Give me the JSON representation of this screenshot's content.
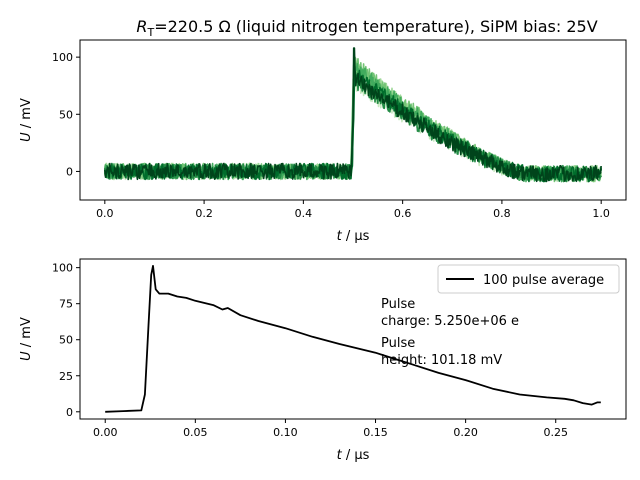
{
  "figure": {
    "title_main": "R",
    "title_sub": "T",
    "title_rest": "=220.5 Ω (liquid nitrogen temperature), SiPM bias: 25V"
  },
  "chart_data": [
    {
      "type": "line",
      "title": "R_T=220.5 Ω (liquid nitrogen temperature), SiPM bias: 25V",
      "xlabel": "t / µs",
      "ylabel": "U / mV",
      "xlim": [
        -0.05,
        1.05
      ],
      "ylim": [
        -25,
        115
      ],
      "xticks": [
        0.0,
        0.2,
        0.4,
        0.6,
        0.8,
        1.0
      ],
      "xtick_labels": [
        "0.0",
        "0.2",
        "0.4",
        "0.6",
        "0.8",
        "1.0"
      ],
      "yticks": [
        0,
        50,
        100
      ],
      "ytick_labels": [
        "0",
        "50",
        "100"
      ],
      "grid": false,
      "colors": [
        "#c7e9c0",
        "#a1d99b",
        "#74c476",
        "#41ab5d",
        "#238b45",
        "#006d2c",
        "#00441b"
      ],
      "series_description": "overlaid single-pulse traces",
      "pulse": {
        "baseline": 0,
        "noise": 7,
        "onset": 0.497,
        "rise_end": 0.502,
        "peak": 90,
        "max_spike": 108,
        "decay_end": 0.85,
        "end": 1.0
      }
    },
    {
      "type": "line",
      "xlabel": "t / µs",
      "ylabel": "U / mV",
      "xlim": [
        -0.014,
        0.289
      ],
      "ylim": [
        -5,
        106
      ],
      "xticks": [
        0.0,
        0.05,
        0.1,
        0.15,
        0.2,
        0.25
      ],
      "xtick_labels": [
        "0.00",
        "0.05",
        "0.10",
        "0.15",
        "0.20",
        "0.25"
      ],
      "yticks": [
        0,
        25,
        50,
        75,
        100
      ],
      "ytick_labels": [
        "0",
        "25",
        "50",
        "75",
        "100"
      ],
      "grid": false,
      "legend": {
        "label": "100 pulse average",
        "placement": "top-right"
      },
      "color": "#000000",
      "series": [
        {
          "name": "100 pulse average",
          "x": [
            0.0,
            0.01,
            0.02,
            0.022,
            0.024,
            0.0255,
            0.0265,
            0.028,
            0.03,
            0.035,
            0.04,
            0.045,
            0.05,
            0.06,
            0.065,
            0.068,
            0.075,
            0.085,
            0.1,
            0.115,
            0.13,
            0.15,
            0.16,
            0.17,
            0.185,
            0.2,
            0.215,
            0.23,
            0.245,
            0.255,
            0.26,
            0.265,
            0.27,
            0.273,
            0.275
          ],
          "y": [
            0.0,
            0.5,
            1.0,
            12.0,
            60.0,
            95.0,
            101.18,
            85.0,
            82.0,
            82.0,
            80.0,
            79.0,
            77.0,
            74.0,
            71.0,
            72.0,
            67.0,
            63.0,
            58.0,
            52.0,
            47.0,
            41.0,
            37.0,
            33.0,
            27.0,
            22.0,
            16.0,
            12.0,
            10.0,
            9.0,
            8.0,
            6.0,
            5.0,
            6.5,
            6.5
          ]
        }
      ],
      "annotations": [
        {
          "line1": "Pulse",
          "line2": "charge: 5.250e+06 e"
        },
        {
          "line1": "Pulse",
          "line2": "height: 101.18 mV"
        }
      ]
    }
  ]
}
